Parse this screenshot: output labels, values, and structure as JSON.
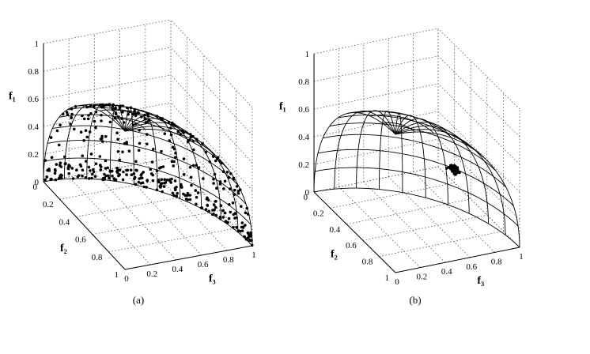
{
  "chart_data": [
    {
      "type": "scatter",
      "subtitle": "(a)",
      "axes": {
        "xlabel": "f₃",
        "ylabel": "f₂",
        "zlabel": "f₁"
      },
      "xlim": [
        0,
        1
      ],
      "ylim": [
        0,
        1
      ],
      "zlim": [
        0,
        1
      ],
      "xticks": [
        "0",
        "0.2",
        "0.4",
        "0.6",
        "0.8",
        "1"
      ],
      "yticks": [
        "0",
        "0.2",
        "0.4",
        "0.6",
        "0.8",
        "1"
      ],
      "zticks": [
        "0",
        "0.2",
        "0.4",
        "0.6",
        "0.8",
        "1"
      ],
      "grid": true,
      "surface": "unit sphere octant f1²+f2²+f3²=1 (wireframe)",
      "points": "approximately 400 solutions spread over the spherical front, densest near the f1=0 boundary"
    },
    {
      "type": "scatter",
      "subtitle": "(b)",
      "axes": {
        "xlabel": "f₃",
        "ylabel": "f₂",
        "zlabel": "f₁"
      },
      "xlim": [
        0,
        1
      ],
      "ylim": [
        0,
        1
      ],
      "zlim": [
        0,
        1
      ],
      "xticks": [
        "0",
        "0.2",
        "0.4",
        "0.6",
        "0.8",
        "1"
      ],
      "yticks": [
        "0",
        "0.2",
        "0.4",
        "0.6",
        "0.8",
        "1"
      ],
      "zticks": [
        "0",
        "0.2",
        "0.4",
        "0.6",
        "0.8",
        "1"
      ],
      "grid": true,
      "surface": "unit sphere octant f1²+f2²+f3²=1 (wireframe)",
      "points": "a tight cluster of solutions near f1 = 0.3, f2 = 0.5, f3 = 0.8"
    }
  ]
}
